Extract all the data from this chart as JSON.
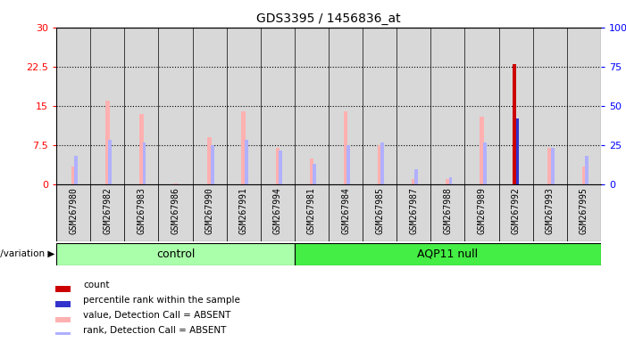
{
  "title": "GDS3395 / 1456836_at",
  "samples": [
    "GSM267980",
    "GSM267982",
    "GSM267983",
    "GSM267986",
    "GSM267990",
    "GSM267991",
    "GSM267994",
    "GSM267981",
    "GSM267984",
    "GSM267985",
    "GSM267987",
    "GSM267988",
    "GSM267989",
    "GSM267992",
    "GSM267993",
    "GSM267995"
  ],
  "groups": [
    "control",
    "control",
    "control",
    "control",
    "control",
    "control",
    "control",
    "AQP11 null",
    "AQP11 null",
    "AQP11 null",
    "AQP11 null",
    "AQP11 null",
    "AQP11 null",
    "AQP11 null",
    "AQP11 null",
    "AQP11 null"
  ],
  "count": [
    0,
    0,
    0,
    0,
    0,
    0,
    0,
    0,
    0,
    0,
    0,
    0,
    0,
    23,
    0,
    0
  ],
  "percentile_rank": [
    0,
    0,
    0,
    0,
    0,
    0,
    0,
    0,
    0,
    0,
    0,
    0,
    0,
    42,
    0,
    0
  ],
  "value_absent": [
    3.5,
    16,
    13.5,
    0.3,
    9,
    14,
    7,
    5,
    14,
    7.5,
    1,
    1,
    13,
    12.5,
    7,
    3.5
  ],
  "rank_absent": [
    5.5,
    8.5,
    8,
    0,
    7.5,
    8.5,
    6.5,
    4,
    7.5,
    8,
    3,
    1.5,
    8,
    0,
    7,
    5.5
  ],
  "control_count": 7,
  "ylim_left": [
    0,
    30
  ],
  "ylim_right": [
    0,
    100
  ],
  "yticks_left": [
    0,
    7.5,
    15,
    22.5,
    30
  ],
  "ytick_labels_left": [
    "0",
    "7.5",
    "15",
    "22.5",
    "30"
  ],
  "yticks_right": [
    0,
    25,
    50,
    75,
    100
  ],
  "ytick_labels_right": [
    "0",
    "25",
    "50",
    "75",
    "100%"
  ],
  "color_count": "#cc0000",
  "color_rank": "#3333cc",
  "color_value_absent": "#ffb0b0",
  "color_rank_absent": "#b0b0ff",
  "bg_plot": "#ffffff",
  "bg_col": "#d8d8d8",
  "bg_group_control": "#aaffaa",
  "bg_group_aqp11": "#44ee44",
  "legend_items": [
    {
      "label": "count",
      "color": "#cc0000"
    },
    {
      "label": "percentile rank within the sample",
      "color": "#3333cc"
    },
    {
      "label": "value, Detection Call = ABSENT",
      "color": "#ffb0b0"
    },
    {
      "label": "rank, Detection Call = ABSENT",
      "color": "#b0b0ff"
    }
  ],
  "group_label": "genotype/variation"
}
